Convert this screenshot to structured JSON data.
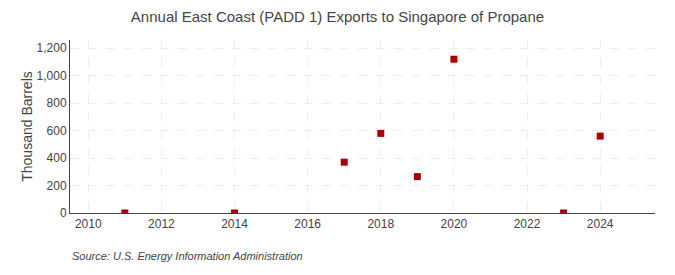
{
  "chart_data": {
    "type": "scatter",
    "title": "Annual East Coast (PADD 1) Exports to Singapore of Propane",
    "ylabel": "Thousand Barrels",
    "annotations": [
      "Source: U.S. Energy Information Administration"
    ],
    "x": [
      2011,
      2014,
      2017,
      2018,
      2019,
      2020,
      2023,
      2024
    ],
    "values": [
      0,
      0,
      370,
      580,
      265,
      1120,
      0,
      560
    ],
    "color": "#aa0000",
    "marker": "square",
    "xlim": [
      2009.5,
      2025.5
    ],
    "ylim": [
      0,
      1260
    ],
    "xticks": [
      2010,
      2012,
      2014,
      2016,
      2018,
      2020,
      2022,
      2024
    ],
    "yticks": [
      0,
      200,
      400,
      600,
      800,
      {
        "value": 1000,
        "label": "1,000"
      },
      {
        "value": 1200,
        "label": "1,200"
      }
    ],
    "grid": true
  }
}
